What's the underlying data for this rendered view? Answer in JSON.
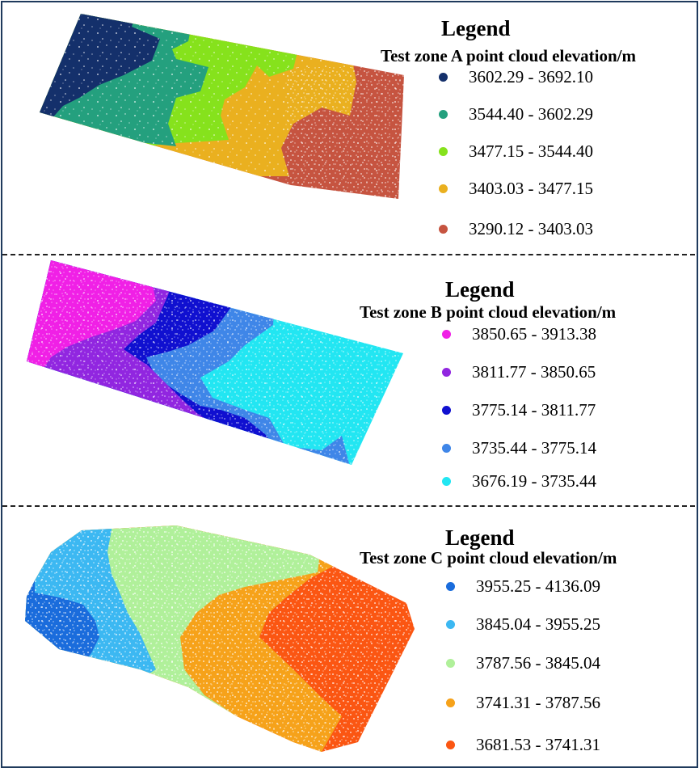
{
  "panels": [
    {
      "id": "a",
      "legend_title": "Legend",
      "legend_subtitle": "Test zone A point cloud elevation/m",
      "items": [
        {
          "label": "3602.29 - 3692.10",
          "color": "#14306b"
        },
        {
          "label": "3544.40 - 3602.29",
          "color": "#24a07e"
        },
        {
          "label": "3477.15 - 3544.40",
          "color": "#86e21c"
        },
        {
          "label": "3403.03 - 3477.15",
          "color": "#eab01f"
        },
        {
          "label": "3290.12 - 3403.03",
          "color": "#c65440"
        }
      ]
    },
    {
      "id": "b",
      "legend_title": "Legend",
      "legend_subtitle": "Test zone B point cloud elevation/m",
      "items": [
        {
          "label": "3850.65 - 3913.38",
          "color": "#f020e6"
        },
        {
          "label": "3811.77 - 3850.65",
          "color": "#9126e0"
        },
        {
          "label": "3775.14 - 3811.77",
          "color": "#1010d0"
        },
        {
          "label": "3735.44 - 3775.14",
          "color": "#3f86e8"
        },
        {
          "label": "3676.19 - 3735.44",
          "color": "#22e6f2"
        }
      ]
    },
    {
      "id": "c",
      "legend_title": "Legend",
      "legend_subtitle": "Test zone C point cloud elevation/m",
      "items": [
        {
          "label": "3955.25 - 4136.09",
          "color": "#1a6cdc"
        },
        {
          "label": "3845.04 - 3955.25",
          "color": "#3cb8f2"
        },
        {
          "label": "3787.56 - 3845.04",
          "color": "#b0f09a"
        },
        {
          "label": "3741.31 - 3787.56",
          "color": "#f6a21a"
        },
        {
          "label": "3681.53 - 3741.31",
          "color": "#fb5612"
        }
      ]
    }
  ]
}
